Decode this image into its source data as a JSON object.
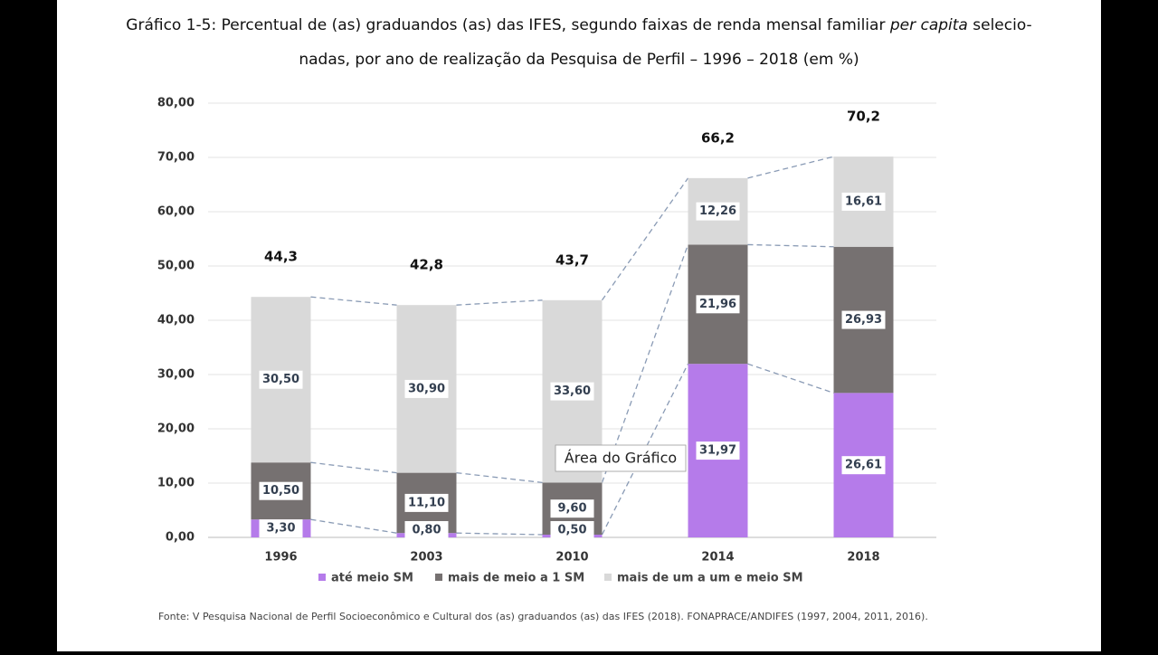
{
  "chart_data": {
    "type": "stacked_bar",
    "title": [
      "Gráfico 1-5: Percentual  de (as) graduandos (as) das IFES, segundo faixas de renda mensal familiar ",
      "per capita",
      " selecio-",
      "nadas, por ano de realização da Pesquisa de Perfil – 1996 – 2018 (em %)"
    ],
    "categories": [
      "1996",
      "2003",
      "2010",
      "2014",
      "2018"
    ],
    "series": [
      {
        "name": "até meio SM",
        "color": "#b57bea",
        "values": [
          3.3,
          0.8,
          0.5,
          31.97,
          26.61
        ],
        "value_labels": [
          "3,30",
          "0,80",
          "0,50",
          "31,97",
          "26,61"
        ]
      },
      {
        "name": "mais de meio a 1 SM",
        "color": "#767171",
        "values": [
          10.5,
          11.1,
          9.6,
          21.96,
          26.93
        ],
        "value_labels": [
          "10,50",
          "11,10",
          "9,60",
          "21,96",
          "26,93"
        ]
      },
      {
        "name": "mais de um a um e meio SM",
        "color": "#d9d9d9",
        "values": [
          30.5,
          30.9,
          33.6,
          12.26,
          16.61
        ],
        "value_labels": [
          "30,50",
          "30,90",
          "33,60",
          "12,26",
          "16,61"
        ]
      }
    ],
    "totals": [
      44.3,
      42.8,
      43.7,
      66.2,
      70.2
    ],
    "total_labels": [
      "44,3",
      "42,8",
      "43,7",
      "66,2",
      "70,2"
    ],
    "ylim": [
      0,
      80
    ],
    "yticks": [
      {
        "value": 0,
        "label": "0,00"
      },
      {
        "value": 10,
        "label": "10,00"
      },
      {
        "value": 20,
        "label": "20,00"
      },
      {
        "value": 30,
        "label": "30,00"
      },
      {
        "value": 40,
        "label": "40,00"
      },
      {
        "value": 50,
        "label": "50,00"
      },
      {
        "value": 60,
        "label": "60,00"
      },
      {
        "value": 70,
        "label": "70,00"
      },
      {
        "value": 80,
        "label": "80,00"
      }
    ],
    "grid": true,
    "tooltip": "Área do Gráfico",
    "source": "Fonte: V Pesquisa Nacional de Perfil Socioeconômico e Cultural dos (as) graduandos (as) das IFES (2018). FONAPRACE/ANDIFES (1997, 2004, 2011, 2016)."
  }
}
